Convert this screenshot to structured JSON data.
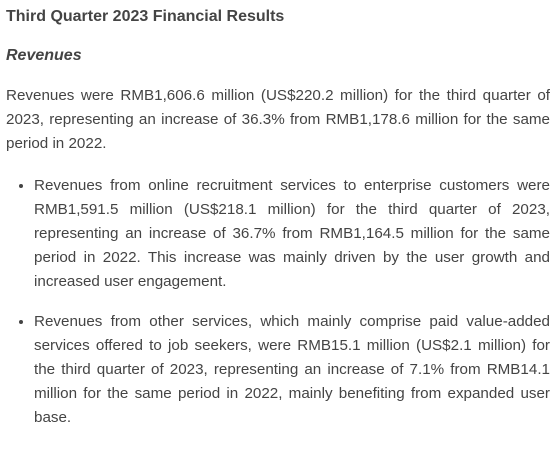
{
  "heading": {
    "title": "Third Quarter 2023 Financial Results",
    "subtitle": "Revenues"
  },
  "summary": "Revenues were RMB1,606.6 million (US$220.2 million) for the third quarter of 2023, representing an increase of 36.3% from RMB1,178.6 million for the same period in 2022.",
  "bullets": [
    "Revenues from online recruitment services to enterprise customers were RMB1,591.5 million (US$218.1 million) for the third quarter of 2023, representing an increase of 36.7% from RMB1,164.5 million for the same period in 2022. This increase was mainly driven by the user growth and increased user engagement.",
    "Revenues from other services, which mainly comprise paid value-added services offered to job seekers, were RMB15.1 million (US$2.1 million) for the third quarter of 2023, representing an increase of 7.1% from RMB14.1 million for the same period in 2022, mainly benefiting from expanded user base."
  ]
}
